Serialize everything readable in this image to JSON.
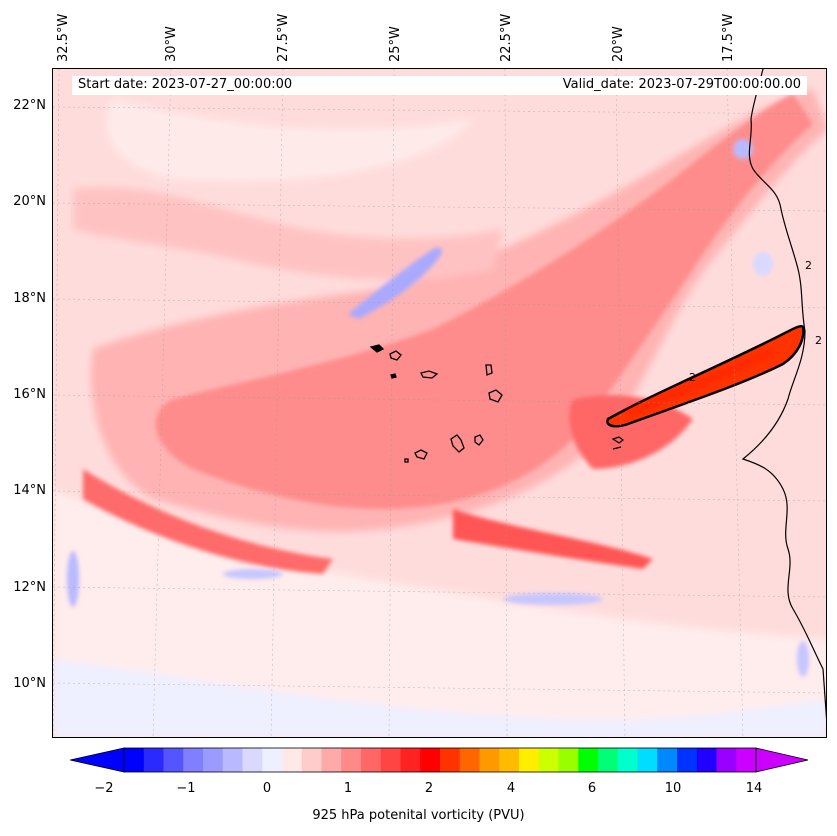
{
  "map": {
    "start_label": "Start date: 2023-07-27_00:00:00",
    "valid_label": "Valid_date: 2023-07-29T00:00:00.00",
    "lon_labels": [
      "32.5°W",
      "30°W",
      "27.5°W",
      "25°W",
      "22.5°W",
      "20°W",
      "17.5°W"
    ],
    "lat_labels": [
      "22°N",
      "20°N",
      "18°N",
      "16°N",
      "14°N",
      "12°N",
      "10°N"
    ],
    "contour_label": "2",
    "field": "925 hPa potential vorticity"
  },
  "colorbar": {
    "label": "925 hPa potenital vorticity (PVU)",
    "ticks": [
      "−2",
      "−1",
      "0",
      "1",
      "2",
      "4",
      "6",
      "10",
      "14"
    ],
    "colors": [
      "#0000ff",
      "#2a2aff",
      "#5555ff",
      "#7f7fff",
      "#9b9bff",
      "#b9b9ff",
      "#d9d9ff",
      "#eef0ff",
      "#ffe8e8",
      "#ffcccc",
      "#ffaaaa",
      "#ff8888",
      "#ff6666",
      "#ff4444",
      "#ff2222",
      "#ff0000",
      "#ff3300",
      "#ff6600",
      "#ff9900",
      "#ffbb00",
      "#ffee00",
      "#ccff00",
      "#99ff00",
      "#00ff00",
      "#00ff77",
      "#00ffcc",
      "#00ddff",
      "#0088ff",
      "#0033ff",
      "#2200ff",
      "#9900ff",
      "#cc00ff"
    ],
    "under_color": "#0000ff",
    "over_color": "#cc00ff"
  }
}
